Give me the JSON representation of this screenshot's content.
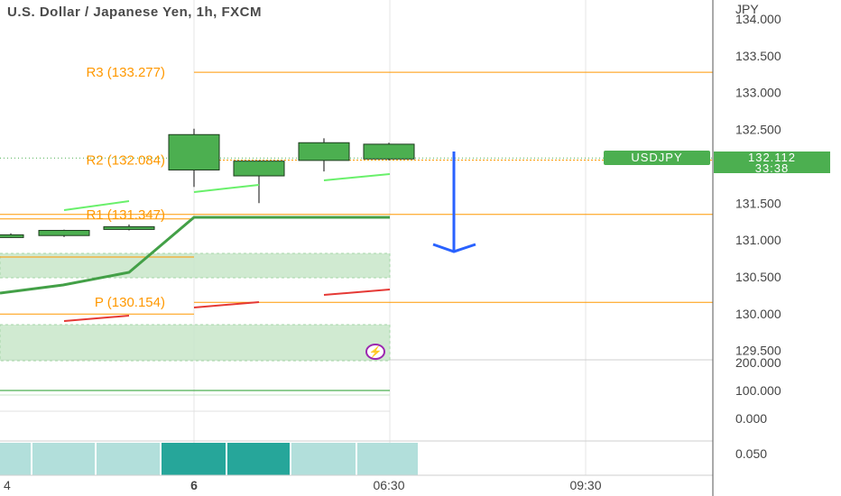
{
  "header": {
    "title": "U.S. Dollar / Japanese Yen, 1h, FXCM"
  },
  "currency_label": "JPY",
  "symbol_badge": "USDJPY",
  "last_price": {
    "value": "132.112",
    "countdown": "33:38"
  },
  "event_icon": "lightning-bolt-icon",
  "colors": {
    "up": "#4caf50",
    "pivot": "#ff9800",
    "arrow": "#2962ff",
    "indicator_line": "#43a047",
    "zone_fill": "#c8e6c9",
    "volume_dark": "#26a69a",
    "volume_light": "#b2dfdb",
    "event": "#9c27b0"
  },
  "chart_data": {
    "type": "candlestick",
    "y_axis_main": {
      "ticks": [
        "134.000",
        "133.500",
        "133.000",
        "132.500",
        "131.500",
        "131.000",
        "130.500",
        "130.000",
        "129.500"
      ],
      "range": [
        129.4,
        134.1
      ]
    },
    "y_axis_sub": {
      "ticks": [
        "200.000",
        "100.000",
        "0.000"
      ]
    },
    "y_axis_volume": {
      "ticks": [
        "0.050"
      ]
    },
    "x_axis": {
      "ticks": [
        "4",
        "6",
        "06:30",
        "09:30"
      ]
    },
    "pivots": [
      {
        "label": "R3 (133.277)",
        "value": 133.277
      },
      {
        "label": "R2 (132.084)",
        "value": 132.084
      },
      {
        "label": "R1 (131.347)",
        "value": 131.347
      },
      {
        "label": "P (130.154)",
        "value": 130.154
      }
    ],
    "candles": [
      {
        "open": 131.05,
        "high": 131.09,
        "low": 131.03,
        "close": 131.07
      },
      {
        "open": 131.06,
        "high": 131.14,
        "low": 131.04,
        "close": 131.13
      },
      {
        "open": 131.15,
        "high": 131.21,
        "low": 131.13,
        "close": 131.18
      },
      {
        "open": 131.95,
        "high": 132.51,
        "low": 131.72,
        "close": 132.43
      },
      {
        "open": 131.87,
        "high": 132.08,
        "low": 131.5,
        "close": 132.07
      },
      {
        "open": 132.08,
        "high": 132.38,
        "low": 131.93,
        "close": 132.32
      },
      {
        "open": 132.1,
        "high": 132.32,
        "low": 132.08,
        "close": 132.3
      }
    ],
    "current_price": 132.112,
    "volume_shades": [
      "light",
      "light",
      "light",
      "dark",
      "dark",
      "light",
      "light"
    ]
  }
}
